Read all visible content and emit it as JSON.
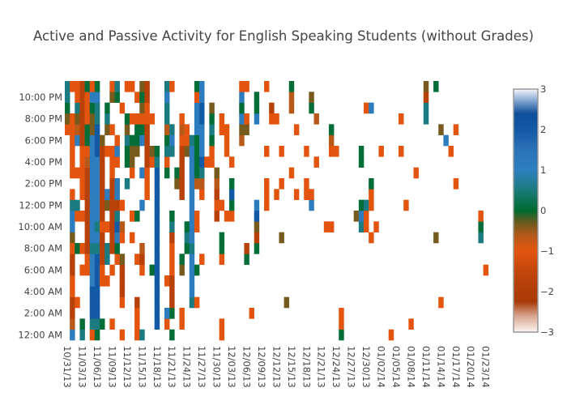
{
  "chart_data": {
    "type": "heatmap",
    "title": "Active and Passive Activity for English Speaking Students (without Grades)",
    "xlabel": "",
    "ylabel": "",
    "x_start_date": "10/31/13",
    "x_day_count": 85,
    "x_tick_labels": [
      "10/31/13",
      "11/03/13",
      "11/06/13",
      "11/09/13",
      "11/12/13",
      "11/15/13",
      "11/18/13",
      "11/21/13",
      "11/24/13",
      "11/27/13",
      "11/30/13",
      "12/03/13",
      "12/06/13",
      "12/09/13",
      "12/12/13",
      "12/15/13",
      "12/18/13",
      "12/21/13",
      "12/24/13",
      "12/27/13",
      "12/30/13",
      "01/02/14",
      "01/05/14",
      "01/08/14",
      "01/11/14",
      "01/14/14",
      "01/17/14",
      "01/20/14",
      "01/23/14"
    ],
    "x_tick_step_days": 3,
    "y_hours": 24,
    "y_tick_labels": [
      "12:00 AM",
      "2:00 AM",
      "4:00 AM",
      "6:00 AM",
      "8:00 AM",
      "10:00 AM",
      "12:00 PM",
      "2:00 PM",
      "4:00 PM",
      "6:00 PM",
      "8:00 PM",
      "10:00 PM"
    ],
    "y_tick_step_hours": 2,
    "zlim": [
      -3,
      3
    ],
    "colorbar_ticks": [
      "3",
      "2",
      "1",
      "0",
      "−1",
      "−2",
      "−3"
    ],
    "colorbar_tick_values": [
      3,
      2,
      1,
      0,
      -1,
      -2,
      -3
    ],
    "colorscale": [
      [
        -3.0,
        "#fbf3ef"
      ],
      [
        -2.6,
        "#d8a58f"
      ],
      [
        -2.25,
        "#a83a08"
      ],
      [
        -1.5,
        "#c2450c"
      ],
      [
        -1.0,
        "#e3550f"
      ],
      [
        -0.6,
        "#b35a1a"
      ],
      [
        -0.3,
        "#6b5a1e"
      ],
      [
        0.0,
        "#006b2f"
      ],
      [
        0.5,
        "#1a7a7a"
      ],
      [
        1.0,
        "#2d7fc0"
      ],
      [
        1.5,
        "#2a72b8"
      ],
      [
        2.0,
        "#135aa5"
      ],
      [
        2.4,
        "#0f4f9a"
      ],
      [
        2.7,
        "#7fa3cf"
      ],
      [
        3.0,
        "#f5f7fb"
      ]
    ],
    "level_values": {
      "D": 2.0,
      "B": 1.1,
      "T": 0.55,
      "G": 0.05,
      "K": -0.35,
      "A": -0.65,
      "O": -1.0,
      "R": -1.8
    },
    "cells_by_hour": {
      "23": "0T,1O,2O,3R,4G,5O,6G,9O,10T,12O,13O,15K,16R,20T,21O,26G,27B,35O,36O,40O,45G,72K,74G",
      "22": "0T,2O,3R,4O,5B,6B,9K,10G,14O,15G,16R,20B,26O,27B,35B,38G,45A,49K,72R",
      "21": "0G,2T,3R,4O,5G,6T,8G,11O,15K,16O,20T,26B,27D,29K,35G,38G,41R,45A,49G,60O,61B,72T",
      "20": "0K,1O,2K,3R,4O,5K,6T,8T,12G,13O,14O,15O,16O,17O,20T,23O,26B,27D,29G,31O,35B,36O,38B,41O,42O,50A,67O,72T",
      "19": "0O,1O,2A,3R,4G,5K,6D,8K,9O,12K,14G,15G,16R,20A,21T,23A,24O,26B,27B,29T,31O,32O,35K,36K,46O,53G,75K,78O",
      "18": "1O,2B,3R,4G,5B,6D,7K,10O,12T,13G,14G,15B,16R,20G,21B,23O,24O,25T,26G,27B,29G,32O,35A,53A,76B",
      "17": "1O,3O,4O,5B,6D,7R,8O,9O,10B,12G,13K,14K,16R,17K,18G,20T,21T,23R,24K,25B,26G,27B,29O,32O,40O,43O,48O,53O,54O,59G,63O,67O,77O",
      "16": "1O,3O,4A,5B,6B,7R,9O,10O,12G,13K,16R,17O,18T,20O,23R,25B,26G,27D,28O,29O,33O,50O,59G",
      "15": "1O,2O,3O,4R,5B,6B,7R,9O,13O,15B,16O,18D,20G,22G,23R,25B,26G,27T,30K,45O,70O",
      "14": "3O,4R,5B,6B,7R,9R,10B,12T,16O,18D,22K,23R,25B,26A,27A,30A,33G,40O,43O,48O,61G,78O",
      "13": "1O,3O,4R,5B,6B,7R,8B,9R,10B,16O,18D,23R,25B,27O,30R,33D,40O,42O,46O,48O,49O,61O",
      "12": "1T,2T,4R,5B,6B,7R,8K,9R,10R,11O,15B,18D,25B,30O,31O,33G,38B,40O,49B,59G,60T,61O,68O",
      "11": "1B,2O,3O,4R,5B,6B,7R,9R,10T,13O,14G,18D,21G,25B,26O,30R,32O,33O,38D,58K,59B,60O,83O",
      "10": "1B,4R,5B,6T,7O,8O,9R,10D,11A,18D,21T,24G,25B,26O,38K,52O,53O,59T,60O,62O,83G",
      "9": "1K,4R,5B,6B,7R,9R,10B,11O,13O,18D,21R,24T,25B,31G,38R,43K,61O,74K,83T",
      "8": "1O,2G,3O,4R,5T,6T,7R,8T,9R,10G,15A,18D,21O,24G,25T,31G,36R,38G",
      "7": "1R,4O,5B,6D,7R,8T,10O,11K,14O,15R,18D,21O,23G,25B,27O,31O,36G",
      "6": "1R,3O,4O,5B,6D,7O,9O,11R,15O,17G,18D,21O,23K,25B,26G,84O",
      "5": "1O,5B,6D,7O,8O,11R,18D,20O,21R,25B",
      "4": "1O,5D,6D,11R,18D,21R,25B",
      "3": "1R,2O,5D,6D,11O,14R,18D,21R,25T,26O,44K,75O",
      "2": "1R,5D,6D,14O,18D,20B,21G,23O,37O,55O",
      "1": "1A,3G,5T,6T,7G,9O,14O,18D,20O,23O,31O,55O,69O",
      "0": "1B,3T,5O,6G,11O,14O,15T,21G,31O,55G,65O"
    }
  }
}
